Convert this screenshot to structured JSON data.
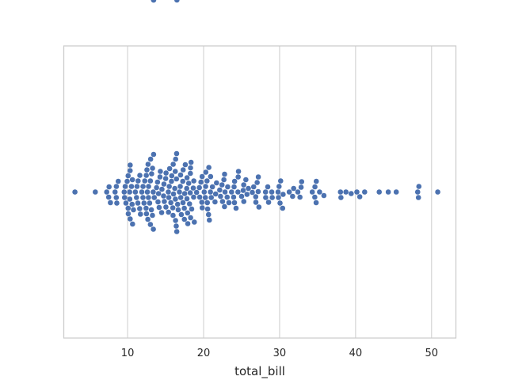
{
  "chart_data": {
    "type": "scatter",
    "subtype": "swarm",
    "title": "",
    "xlabel": "total_bill",
    "ylabel": "",
    "xlim": [
      1.6,
      53.2
    ],
    "xticks": [
      10,
      20,
      30,
      40,
      50
    ],
    "xtick_labels": [
      "10",
      "20",
      "30",
      "40",
      "50"
    ],
    "grid": "vertical",
    "legend": "none",
    "point_color": "#4c72b0",
    "grid_color": "#cccccc",
    "frame_color": "#cccccc",
    "text_color": "#262626",
    "series": [
      {
        "values": [
          3.07,
          5.75,
          7.25,
          7.51,
          7.56,
          7.74,
          8.35,
          8.51,
          8.52,
          8.58,
          8.77,
          9.55,
          9.6,
          9.68,
          9.78,
          9.94,
          10.07,
          10.07,
          10.09,
          10.27,
          10.29,
          10.33,
          10.34,
          10.34,
          10.51,
          10.59,
          10.63,
          10.65,
          10.77,
          11.02,
          11.17,
          11.24,
          11.35,
          11.38,
          11.59,
          11.61,
          11.69,
          11.87,
          12.02,
          12.03,
          12.16,
          12.26,
          12.43,
          12.46,
          12.48,
          12.54,
          12.6,
          12.66,
          12.69,
          12.74,
          12.76,
          12.9,
          13.0,
          13.0,
          13.03,
          13.13,
          13.16,
          13.27,
          13.28,
          13.37,
          13.39,
          13.42,
          13.42,
          13.42,
          13.51,
          13.81,
          13.94,
          14.0,
          14.07,
          14.15,
          14.26,
          14.31,
          14.48,
          14.52,
          14.73,
          14.78,
          14.83,
          15.01,
          15.04,
          15.06,
          15.36,
          15.38,
          15.42,
          15.48,
          15.53,
          15.69,
          15.77,
          15.81,
          15.95,
          15.98,
          16.0,
          16.04,
          16.21,
          16.27,
          16.29,
          16.31,
          16.32,
          16.4,
          16.43,
          16.45,
          16.47,
          16.49,
          16.58,
          16.66,
          16.82,
          16.93,
          16.97,
          16.99,
          17.07,
          17.26,
          17.29,
          17.31,
          17.46,
          17.47,
          17.51,
          17.59,
          17.78,
          17.81,
          17.82,
          17.89,
          17.92,
          18.04,
          18.15,
          18.24,
          18.26,
          18.28,
          18.29,
          18.35,
          18.43,
          18.64,
          18.69,
          18.71,
          18.78,
          19.08,
          19.44,
          19.49,
          19.65,
          19.77,
          19.81,
          19.82,
          20.08,
          20.23,
          20.27,
          20.29,
          20.45,
          20.49,
          20.53,
          20.65,
          20.69,
          20.76,
          20.9,
          20.92,
          21.01,
          21.16,
          21.5,
          21.58,
          21.7,
          22.12,
          22.23,
          22.42,
          22.49,
          22.67,
          22.75,
          22.76,
          22.82,
          23.1,
          23.17,
          23.33,
          23.68,
          23.95,
          24.01,
          24.06,
          24.08,
          24.27,
          24.52,
          24.55,
          24.59,
          25.0,
          25.21,
          25.28,
          25.29,
          25.56,
          25.71,
          25.89,
          26.41,
          26.59,
          26.86,
          26.88,
          27.05,
          27.18,
          27.2,
          27.28,
          28.15,
          28.17,
          28.44,
          28.55,
          28.97,
          29.03,
          29.8,
          29.85,
          29.93,
          30.06,
          30.14,
          30.4,
          30.46,
          31.27,
          31.71,
          31.85,
          32.4,
          32.68,
          32.83,
          32.9,
          34.3,
          34.63,
          34.65,
          34.81,
          34.83,
          35.26,
          35.83,
          38.01,
          38.07,
          38.73,
          39.42,
          40.17,
          40.55,
          41.19,
          43.11,
          44.3,
          45.35,
          48.17,
          48.27,
          48.33,
          50.81
        ]
      }
    ]
  }
}
